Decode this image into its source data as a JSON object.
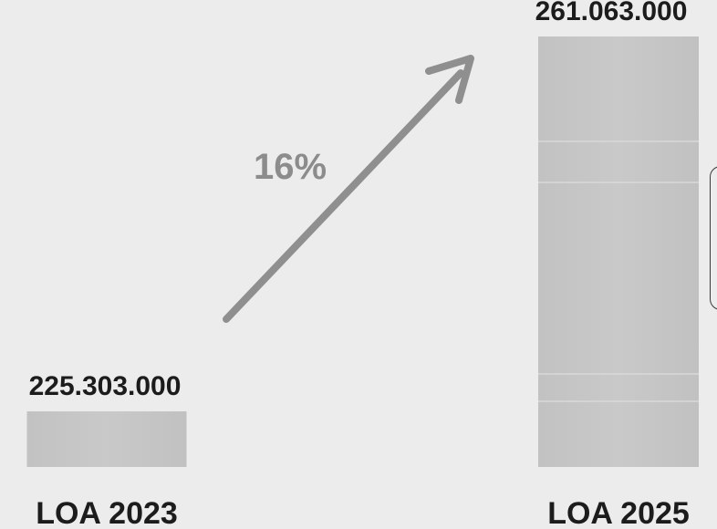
{
  "chart_data": {
    "type": "bar",
    "categories": [
      "LOA 2023",
      "LOA 2025"
    ],
    "values": [
      225303000,
      261063000
    ],
    "data_labels": [
      "225.303.000",
      "261.063.000"
    ],
    "annotation": "16%",
    "colors": {
      "background": "#ececec",
      "bar": "#c4c4c4",
      "arrow": "#8f8f8f",
      "text": "#1c1c1c",
      "annotation": "#8c8c8c"
    },
    "grid": false,
    "legend": "none"
  }
}
